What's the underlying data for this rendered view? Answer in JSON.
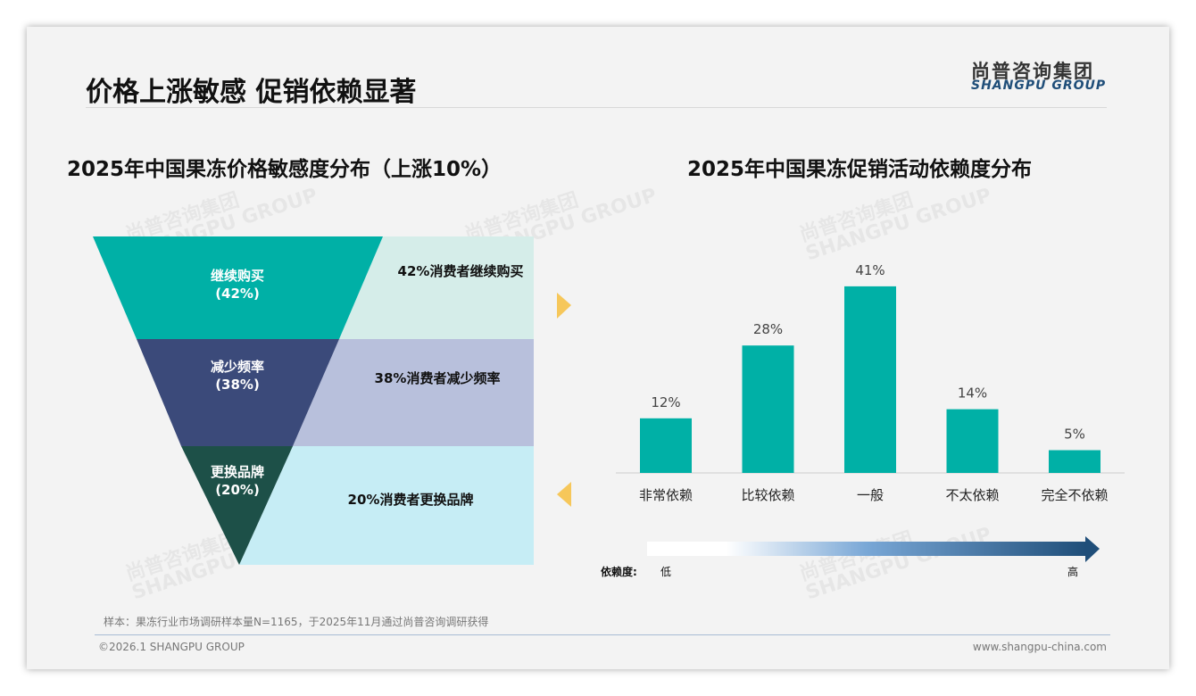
{
  "header": {
    "title": "价格上涨敏感 促销依赖显著",
    "logo_cn": "尚普咨询集团",
    "logo_en": "SHANGPU GROUP"
  },
  "colors": {
    "teal": "#00b0a6",
    "navy": "#3b4a7a",
    "dark_green": "#1d5048",
    "arrow": "#f6c75a"
  },
  "chart_data": [
    {
      "type": "funnel",
      "title": "2025年中国果冻价格敏感度分布（上涨10%）",
      "stages": [
        {
          "name": "继续购买",
          "label": "(42%)",
          "value": 42,
          "desc": "42%消费者继续购买"
        },
        {
          "name": "减少频率",
          "label": "(38%)",
          "value": 38,
          "desc": "38%消费者减少频率"
        },
        {
          "name": "更换品牌",
          "label": "(20%)",
          "value": 20,
          "desc": "20%消费者更换品牌"
        }
      ]
    },
    {
      "type": "bar",
      "title": "2025年中国果冻促销活动依赖度分布",
      "categories": [
        "非常依赖",
        "比较依赖",
        "一般",
        "不太依赖",
        "完全不依赖"
      ],
      "values": [
        12,
        28,
        41,
        14,
        5
      ],
      "labels": [
        "12%",
        "28%",
        "41%",
        "14%",
        "5%"
      ],
      "ylim": [
        0,
        45
      ],
      "scale": {
        "label": "依赖度:",
        "low": "低",
        "high": "高"
      }
    }
  ],
  "footer": {
    "note": "样本：果冻行业市场调研样本量N=1165，于2025年11月通过尚普咨询调研获得",
    "copyright": "©2026.1 SHANGPU GROUP",
    "website": "www.shangpu-china.com"
  }
}
